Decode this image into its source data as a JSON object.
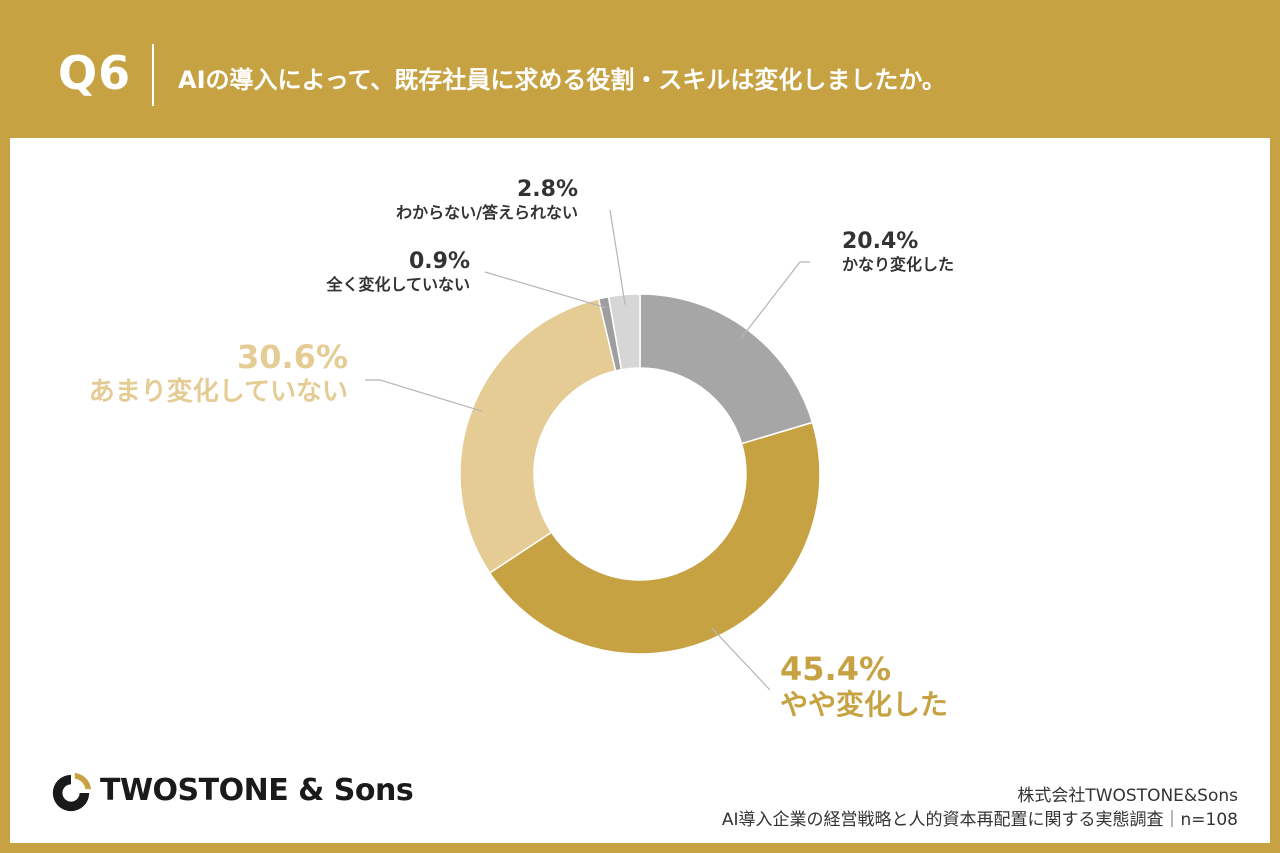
{
  "header": {
    "question_no": "Q6",
    "question": "AIの導入によって、既存社員に求める役割・スキルは変化しましたか。"
  },
  "chart_data": {
    "type": "pie",
    "title": "AIの導入によって、既存社員に求める役割・スキルは変化しましたか。",
    "donut": true,
    "slices": [
      {
        "label": "かなり変化した",
        "value": 20.4,
        "value_label": "20.4%",
        "color": "#a6a6a6"
      },
      {
        "label": "やや変化した",
        "value": 45.4,
        "value_label": "45.4%",
        "color": "#c6a243"
      },
      {
        "label": "あまり変化していない",
        "value": 30.6,
        "value_label": "30.6%",
        "color": "#e5cc95"
      },
      {
        "label": "全く変化していない",
        "value": 0.9,
        "value_label": "0.9%",
        "color": "#9e9e9e"
      },
      {
        "label": "わからない/答えられない",
        "value": 2.8,
        "value_label": "2.8%",
        "color": "#d6d6d6"
      }
    ],
    "legend": "none"
  },
  "footer": {
    "logo_text": "TWOSTONE & Sons",
    "company": "株式会社TWOSTONE&Sons",
    "survey": "AI導入企業の経営戦略と人的資本再配置に関する実態調査｜n=108"
  }
}
